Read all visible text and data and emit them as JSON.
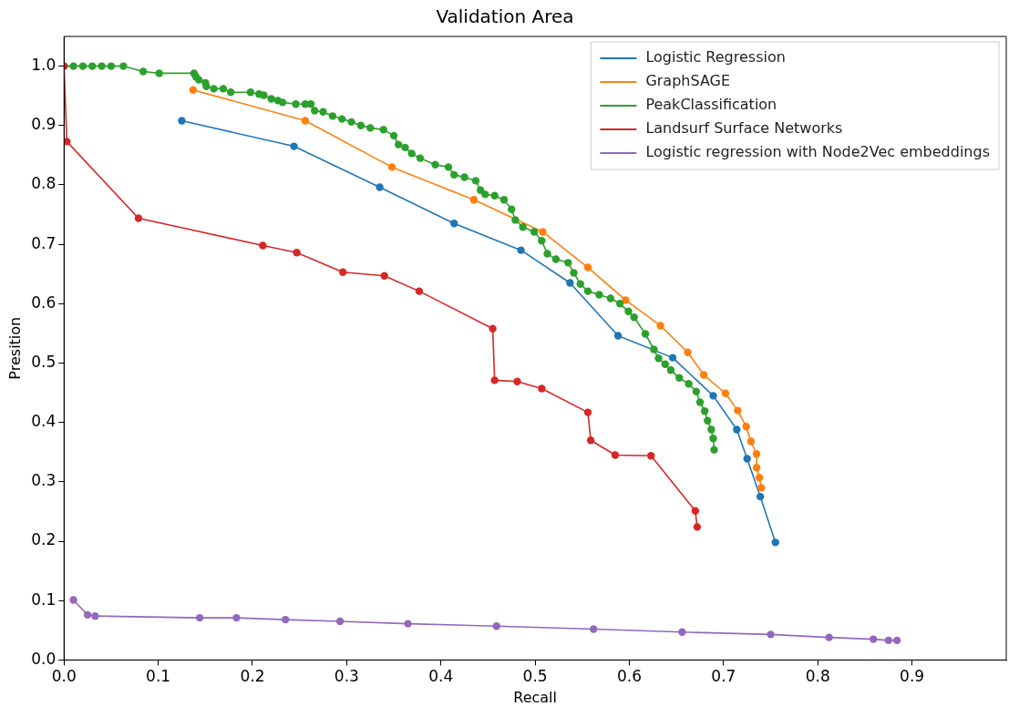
{
  "chart_data": {
    "type": "line",
    "title": "Validation Area",
    "xlabel": "Recall",
    "ylabel": "Presition",
    "xlim": [
      0,
      1.0
    ],
    "ylim": [
      0,
      1.05
    ],
    "xticks": [
      {
        "value": 0,
        "label": "0.0"
      },
      0.1,
      0.2,
      0.3,
      0.4,
      0.5,
      0.6,
      0.7,
      0.8,
      0.9
    ],
    "yticks": [
      {
        "value": 0,
        "label": "0.0"
      },
      0.1,
      0.2,
      0.3,
      0.4,
      0.5,
      0.6,
      0.7,
      0.8,
      0.9,
      {
        "value": 1,
        "label": "1.0"
      }
    ],
    "grid": false,
    "legend": "top right",
    "marker": "circle",
    "line_style": "solid",
    "series": [
      {
        "name": "Logistic Regression",
        "color": "#1f77b4",
        "x": [
          0.125,
          0.244,
          0.335,
          0.414,
          0.485,
          0.537,
          0.588,
          0.646,
          0.689,
          0.714,
          0.725,
          0.739,
          0.755
        ],
        "values": [
          0.908,
          0.865,
          0.796,
          0.735,
          0.69,
          0.635,
          0.546,
          0.509,
          0.445,
          0.388,
          0.339,
          0.275,
          0.198
        ]
      },
      {
        "name": "GraphSAGE",
        "color": "#ff7f0e",
        "x": [
          0.137,
          0.256,
          0.348,
          0.435,
          0.508,
          0.556,
          0.596,
          0.633,
          0.662,
          0.679,
          0.702,
          0.715,
          0.724,
          0.729,
          0.735,
          0.735,
          0.738,
          0.74
        ],
        "values": [
          0.96,
          0.908,
          0.83,
          0.775,
          0.721,
          0.661,
          0.606,
          0.563,
          0.518,
          0.48,
          0.449,
          0.42,
          0.393,
          0.368,
          0.347,
          0.324,
          0.307,
          0.29
        ]
      },
      {
        "name": "PeakClassification",
        "color": "#2ca02c",
        "x": [
          0.0,
          0.01,
          0.02,
          0.03,
          0.04,
          0.05,
          0.063,
          0.084,
          0.101,
          0.138,
          0.14,
          0.143,
          0.15,
          0.151,
          0.159,
          0.169,
          0.177,
          0.198,
          0.207,
          0.212,
          0.22,
          0.227,
          0.232,
          0.246,
          0.256,
          0.262,
          0.266,
          0.275,
          0.285,
          0.295,
          0.305,
          0.315,
          0.325,
          0.339,
          0.35,
          0.355,
          0.362,
          0.369,
          0.378,
          0.394,
          0.408,
          0.414,
          0.425,
          0.437,
          0.442,
          0.447,
          0.457,
          0.467,
          0.475,
          0.479,
          0.487,
          0.499,
          0.507,
          0.513,
          0.522,
          0.535,
          0.541,
          0.548,
          0.556,
          0.568,
          0.58,
          0.59,
          0.599,
          0.605,
          0.617,
          0.626,
          0.631,
          0.638,
          0.644,
          0.653,
          0.663,
          0.671,
          0.675,
          0.68,
          0.683,
          0.687,
          0.689,
          0.69
        ],
        "values": [
          1.0,
          1.0,
          1.0,
          1.0,
          1.0,
          1.0,
          1.0,
          0.991,
          0.988,
          0.988,
          0.982,
          0.977,
          0.972,
          0.966,
          0.962,
          0.962,
          0.956,
          0.956,
          0.953,
          0.951,
          0.945,
          0.942,
          0.939,
          0.936,
          0.936,
          0.936,
          0.925,
          0.923,
          0.916,
          0.911,
          0.906,
          0.9,
          0.896,
          0.893,
          0.883,
          0.868,
          0.863,
          0.853,
          0.845,
          0.834,
          0.83,
          0.817,
          0.813,
          0.807,
          0.791,
          0.784,
          0.782,
          0.775,
          0.759,
          0.741,
          0.729,
          0.721,
          0.706,
          0.684,
          0.675,
          0.669,
          0.652,
          0.633,
          0.621,
          0.615,
          0.609,
          0.6,
          0.587,
          0.577,
          0.549,
          0.523,
          0.508,
          0.498,
          0.488,
          0.475,
          0.465,
          0.452,
          0.434,
          0.419,
          0.403,
          0.388,
          0.373,
          0.354
        ]
      },
      {
        "name": "Landsurf Surface Networks",
        "color": "#d62728",
        "x": [
          0.0,
          0.003,
          0.079,
          0.211,
          0.247,
          0.296,
          0.34,
          0.377,
          0.455,
          0.457,
          0.481,
          0.507,
          0.556,
          0.559,
          0.585,
          0.623,
          0.67,
          0.672
        ],
        "values": [
          1.0,
          0.873,
          0.744,
          0.698,
          0.686,
          0.653,
          0.647,
          0.621,
          0.558,
          0.471,
          0.469,
          0.457,
          0.417,
          0.37,
          0.345,
          0.344,
          0.251,
          0.224
        ]
      },
      {
        "name": "Logistic regression with Node2Vec embeddings",
        "color": "#9467bd",
        "x": [
          0.01,
          0.025,
          0.033,
          0.144,
          0.183,
          0.235,
          0.293,
          0.365,
          0.459,
          0.562,
          0.656,
          0.75,
          0.812,
          0.859,
          0.875,
          0.884
        ],
        "values": [
          0.101,
          0.076,
          0.074,
          0.071,
          0.071,
          0.068,
          0.065,
          0.061,
          0.057,
          0.052,
          0.047,
          0.043,
          0.038,
          0.035,
          0.033,
          0.033
        ]
      }
    ]
  }
}
